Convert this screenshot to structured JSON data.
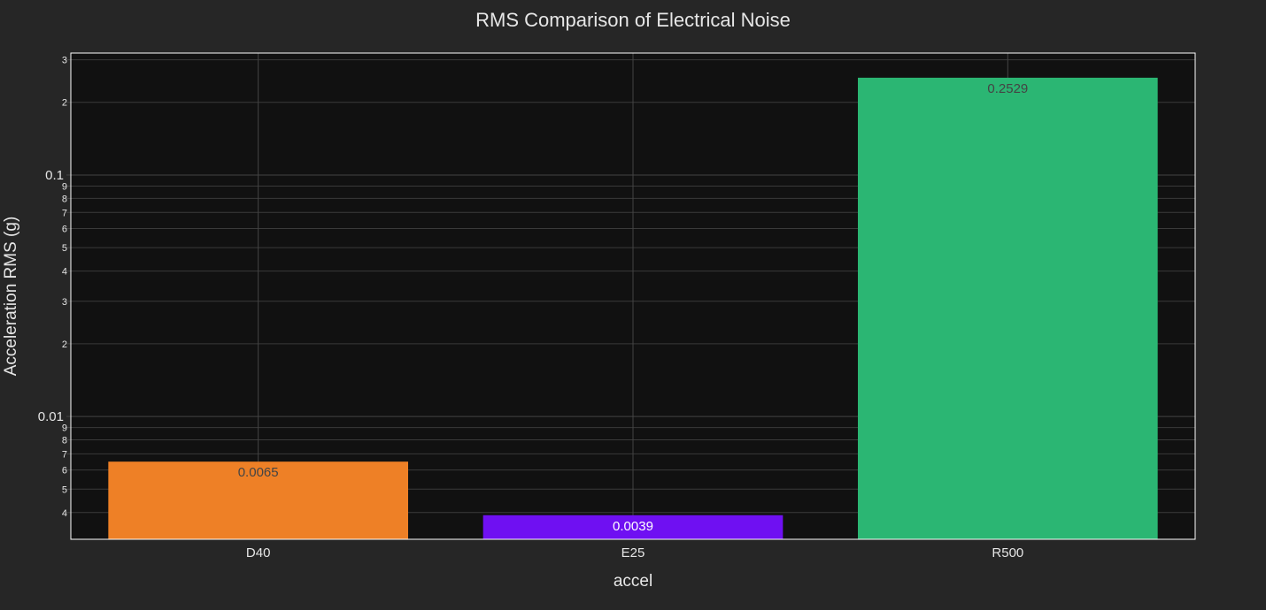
{
  "chart_data": {
    "type": "bar",
    "title": "RMS Comparison of Electrical Noise",
    "xlabel": "accel",
    "ylabel": "Acceleration RMS (g)",
    "categories": [
      "D40",
      "E25",
      "R500"
    ],
    "values": [
      0.0065,
      0.0039,
      0.2529
    ],
    "data_labels": [
      "0.0065",
      "0.0039",
      "0.2529"
    ],
    "bar_colors": [
      "#ee8026",
      "#6f10f2",
      "#2bb673"
    ],
    "label_colors": [
      "#444444",
      "#ffffff",
      "#444444"
    ],
    "yscale": "log",
    "ylim": [
      0.0031,
      0.32
    ],
    "major_ticks": [
      {
        "value": 0.01,
        "label": "0.01"
      },
      {
        "value": 0.1,
        "label": "0.1"
      }
    ],
    "minor_ticks": [
      {
        "value": 0.004,
        "label": "4"
      },
      {
        "value": 0.005,
        "label": "5"
      },
      {
        "value": 0.006,
        "label": "6"
      },
      {
        "value": 0.007,
        "label": "7"
      },
      {
        "value": 0.008,
        "label": "8"
      },
      {
        "value": 0.009,
        "label": "9"
      },
      {
        "value": 0.02,
        "label": "2"
      },
      {
        "value": 0.03,
        "label": "3"
      },
      {
        "value": 0.04,
        "label": "4"
      },
      {
        "value": 0.05,
        "label": "5"
      },
      {
        "value": 0.06,
        "label": "6"
      },
      {
        "value": 0.07,
        "label": "7"
      },
      {
        "value": 0.08,
        "label": "8"
      },
      {
        "value": 0.09,
        "label": "9"
      },
      {
        "value": 0.2,
        "label": "2"
      },
      {
        "value": 0.3,
        "label": "3"
      }
    ],
    "grid": true,
    "plot_background": "#111111",
    "page_background": "#262626"
  }
}
